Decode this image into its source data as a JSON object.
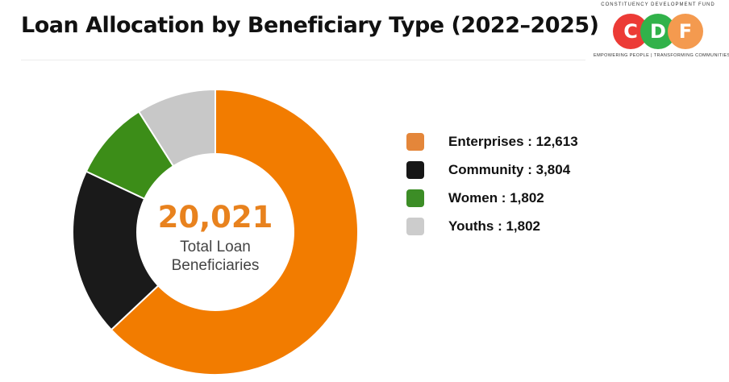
{
  "header": {
    "title": "Loan Allocation by Beneficiary Type  (2022–2025)"
  },
  "logo": {
    "top_text": "CONSTITUENCY DEVELOPMENT FUND",
    "letters": [
      "C",
      "D",
      "F"
    ],
    "tagline": "EMPOWERING PEOPLE | TRANSFORMING COMMUNITIES",
    "colors": [
      "#ec3b36",
      "#31b24a",
      "#f49a4f"
    ]
  },
  "chart_data": {
    "type": "pie",
    "donut": true,
    "center_value": "20,021",
    "center_label_line1": "Total Loan",
    "center_label_line2": "Beneficiaries",
    "legend_position": "right",
    "slices": [
      {
        "name": "Enterprises",
        "value": 12613,
        "display": "12,613",
        "color": "#f27c00",
        "legend_color": "#e4863a"
      },
      {
        "name": "Community",
        "value": 3804,
        "display": "3,804",
        "color": "#1a1a1a",
        "legend_color": "#161616"
      },
      {
        "name": "Women",
        "value": 1802,
        "display": "1,802",
        "color": "#3c8d18",
        "legend_color": "#3c8d26"
      },
      {
        "name": "Youths",
        "value": 1802,
        "display": "1,802",
        "color": "#c8c8c8",
        "legend_color": "#cccccc"
      }
    ]
  }
}
